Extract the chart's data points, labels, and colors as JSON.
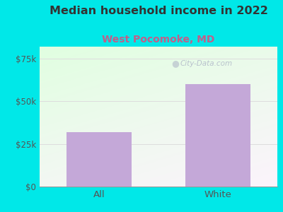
{
  "title": "Median household income in 2022",
  "subtitle": "West Pocomoke, MD",
  "categories": [
    "All",
    "White"
  ],
  "values": [
    32000,
    60000
  ],
  "bar_color": "#C4A8D8",
  "title_color": "#333333",
  "subtitle_color": "#c0608a",
  "bg_color": "#00e8e8",
  "yticks": [
    0,
    25000,
    50000,
    75000
  ],
  "ytick_labels": [
    "$0",
    "$25k",
    "$50k",
    "$75k"
  ],
  "ylim": [
    0,
    82000
  ],
  "grid_color": "#dddddd",
  "watermark": "City-Data.com",
  "watermark_color": "#b0b8c8"
}
